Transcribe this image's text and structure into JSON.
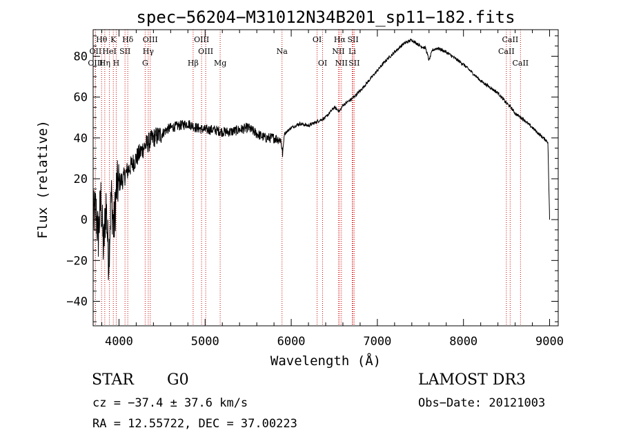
{
  "colors": {
    "spectrum": "#000000",
    "line_marker": "#cc0000",
    "axes": "#000000"
  },
  "chart_data": {
    "type": "line",
    "title": "spec−56204−M31012N34B201_sp11−182.fits",
    "xlabel": "Wavelength (Å)",
    "ylabel": "Flux (relative)",
    "xlim": [
      3700,
      9100
    ],
    "ylim": [
      -52,
      93
    ],
    "x_ticks": [
      4000,
      5000,
      6000,
      7000,
      8000,
      9000
    ],
    "x_tick_labels": [
      "4000",
      "5000",
      "6000",
      "7000",
      "8000",
      "9000"
    ],
    "y_ticks": [
      -40,
      -20,
      0,
      20,
      40,
      60,
      80
    ],
    "y_tick_labels": [
      "−40",
      "−20",
      "0",
      "20",
      "40",
      "60",
      "80"
    ],
    "series": [
      {
        "name": "spectrum",
        "x": [
          3700,
          3730,
          3760,
          3790,
          3820,
          3850,
          3880,
          3910,
          3940,
          3970,
          4000,
          4050,
          4100,
          4150,
          4200,
          4250,
          4300,
          4350,
          4400,
          4450,
          4500,
          4550,
          4600,
          4700,
          4800,
          4900,
          5000,
          5100,
          5200,
          5300,
          5400,
          5500,
          5600,
          5700,
          5800,
          5880,
          5900,
          5920,
          6000,
          6100,
          6200,
          6300,
          6400,
          6500,
          6563,
          6600,
          6700,
          6800,
          6900,
          7000,
          7100,
          7200,
          7300,
          7400,
          7500,
          7560,
          7600,
          7640,
          7700,
          7800,
          7900,
          8000,
          8100,
          8200,
          8300,
          8400,
          8500,
          8550,
          8600,
          8700,
          8800,
          8900,
          8980,
          9000
        ],
        "y": [
          0,
          5,
          -8,
          10,
          -15,
          8,
          -20,
          12,
          -5,
          15,
          18,
          20,
          24,
          27,
          30,
          33,
          36,
          38,
          40,
          41,
          42,
          44,
          45,
          46,
          47,
          45,
          44,
          44,
          43,
          43,
          44,
          45,
          42,
          40,
          40,
          39,
          32,
          42,
          45,
          47,
          46,
          48,
          50,
          55,
          53,
          56,
          59,
          63,
          68,
          73,
          78,
          82,
          86,
          88,
          85,
          84,
          78,
          83,
          84,
          82,
          79,
          76,
          72,
          68,
          65,
          62,
          57,
          55,
          52,
          49,
          45,
          41,
          38,
          0
        ]
      }
    ],
    "emission_lines": [
      {
        "name": "Hθ",
        "wavelength": 3798,
        "label_row": 1
      },
      {
        "name": "K",
        "wavelength": 3934,
        "label_row": 1
      },
      {
        "name": "Hδ",
        "wavelength": 4102,
        "label_row": 1
      },
      {
        "name": "OIII",
        "wavelength": 4363,
        "label_row": 1
      },
      {
        "name": "OIII",
        "wavelength": 4959,
        "label_row": 1
      },
      {
        "name": "OI",
        "wavelength": 6300,
        "label_row": 1
      },
      {
        "name": "Hα",
        "wavelength": 6563,
        "label_row": 1
      },
      {
        "name": "SII",
        "wavelength": 6717,
        "label_row": 1
      },
      {
        "name": "CaII",
        "wavelength": 8542,
        "label_row": 1
      },
      {
        "name": "OII",
        "wavelength": 3727,
        "label_row": 2
      },
      {
        "name": "HeI",
        "wavelength": 3889,
        "label_row": 2
      },
      {
        "name": "SII",
        "wavelength": 4070,
        "label_row": 2
      },
      {
        "name": "Hγ",
        "wavelength": 4340,
        "label_row": 2
      },
      {
        "name": "OIII",
        "wavelength": 5007,
        "label_row": 2
      },
      {
        "name": "Na",
        "wavelength": 5893,
        "label_row": 2
      },
      {
        "name": "NII",
        "wavelength": 6548,
        "label_row": 2
      },
      {
        "name": "Li",
        "wavelength": 6708,
        "label_row": 2
      },
      {
        "name": "CaII",
        "wavelength": 8498,
        "label_row": 2
      },
      {
        "name": "OIII",
        "wavelength": 3727,
        "label_row": 3
      },
      {
        "name": "Hη",
        "wavelength": 3835,
        "label_row": 3
      },
      {
        "name": "H",
        "wavelength": 3968,
        "label_row": 3
      },
      {
        "name": "G",
        "wavelength": 4304,
        "label_row": 3
      },
      {
        "name": "Hβ",
        "wavelength": 4861,
        "label_row": 3
      },
      {
        "name": "Mg",
        "wavelength": 5175,
        "label_row": 3
      },
      {
        "name": "OI",
        "wavelength": 6364,
        "label_row": 3
      },
      {
        "name": "NII",
        "wavelength": 6583,
        "label_row": 3
      },
      {
        "name": "SII",
        "wavelength": 6731,
        "label_row": 3
      },
      {
        "name": "CaII",
        "wavelength": 8662,
        "label_row": 3
      }
    ]
  },
  "info": {
    "class": "STAR",
    "subclass": "G0",
    "survey": "LAMOST DR3",
    "cz": "cz = −37.4 ± 37.6 km/s",
    "obs_date": "Obs−Date: 20121003",
    "coords": "RA =  12.55722, DEC =  37.00223"
  }
}
